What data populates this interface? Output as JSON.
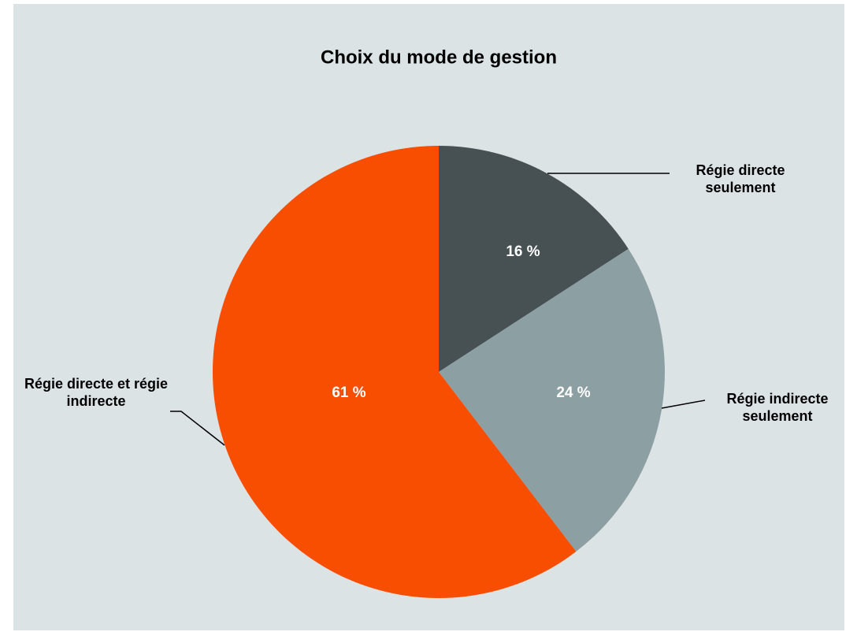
{
  "chart_data": {
    "type": "pie",
    "title": "Choix du mode de gestion",
    "categories": [
      "Régie directe seulement",
      "Régie indirecte seulement",
      "Régie directe et régie indirecte"
    ],
    "values": [
      16,
      24,
      61
    ],
    "value_labels": [
      "16 %",
      "24 %",
      "61 %"
    ],
    "colors": [
      "#475052",
      "#8c9fa3",
      "#f74e02"
    ]
  }
}
